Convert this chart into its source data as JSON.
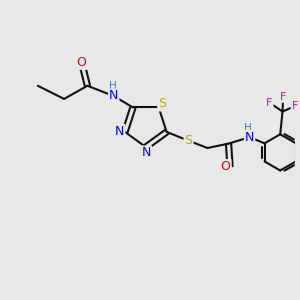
{
  "bg_color": "#e8e8e8",
  "atom_colors": {
    "C": "#000000",
    "N": "#0000ee",
    "O": "#dd0000",
    "S": "#bbaa00",
    "F": "#ee00aa",
    "H": "#4477aa"
  },
  "bond_color": "#111111",
  "bond_width": 1.5
}
